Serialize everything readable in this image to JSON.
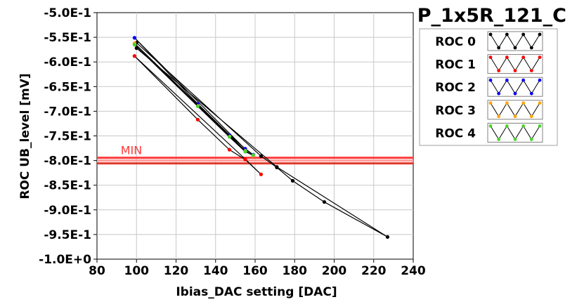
{
  "chart_data": {
    "type": "line",
    "title": "P_1x5R_121_C",
    "xlabel": "Ibias_DAC setting [DAC]",
    "ylabel": "ROC UB_level [mV]",
    "xlim": [
      80,
      240
    ],
    "ylim": [
      -1.0,
      -0.5
    ],
    "x_ticks": [
      "80",
      "100",
      "120",
      "140",
      "160",
      "180",
      "200",
      "220",
      "240"
    ],
    "y_ticks": [
      "-5.0E-1",
      "-5.5E-1",
      "-6.0E-1",
      "-6.5E-1",
      "-7.0E-1",
      "-7.5E-1",
      "-8.0E-1",
      "-8.5E-1",
      "-9.0E-1",
      "-9.5E-1",
      "-1.0E+0"
    ],
    "grid": true,
    "legend_position": "top-right",
    "min_label": "MIN",
    "min_line": {
      "y": -0.8,
      "colors": [
        "#ff3b3b",
        "#ff9d9d",
        "#e03a2a"
      ]
    },
    "series": [
      {
        "name": "ROC 0",
        "color": "#000000",
        "points": [
          [
            100,
            -0.561
          ],
          [
            163,
            -0.791
          ],
          [
            171,
            -0.814
          ],
          [
            179,
            -0.841
          ],
          [
            195,
            -0.884
          ],
          [
            227,
            -0.955
          ],
          [
            171,
            -0.813
          ],
          [
            100,
            -0.572
          ]
        ]
      },
      {
        "name": "ROC 1",
        "color": "#ff0000",
        "points": [
          [
            99,
            -0.588
          ],
          [
            131,
            -0.717
          ],
          [
            147,
            -0.778
          ],
          [
            155,
            -0.798
          ],
          [
            163,
            -0.828
          ],
          [
            155,
            -0.797
          ],
          [
            99,
            -0.588
          ]
        ]
      },
      {
        "name": "ROC 2",
        "color": "#0000ff",
        "points": [
          [
            99,
            -0.551
          ],
          [
            131,
            -0.685
          ],
          [
            147,
            -0.748
          ],
          [
            155,
            -0.776
          ],
          [
            159,
            -0.788
          ],
          [
            155,
            -0.777
          ],
          [
            99,
            -0.551
          ]
        ]
      },
      {
        "name": "ROC 3",
        "color": "#ffa500",
        "points": [
          [
            99,
            -0.562
          ],
          [
            131,
            -0.689
          ],
          [
            147,
            -0.751
          ],
          [
            155,
            -0.781
          ],
          [
            159,
            -0.79
          ],
          [
            155,
            -0.78
          ],
          [
            99,
            -0.562
          ]
        ]
      },
      {
        "name": "ROC 4",
        "color": "#4cd42c",
        "points": [
          [
            99,
            -0.565
          ],
          [
            131,
            -0.69
          ],
          [
            147,
            -0.752
          ],
          [
            155,
            -0.782
          ],
          [
            159,
            -0.789
          ],
          [
            155,
            -0.781
          ],
          [
            99,
            -0.565
          ]
        ]
      }
    ]
  }
}
